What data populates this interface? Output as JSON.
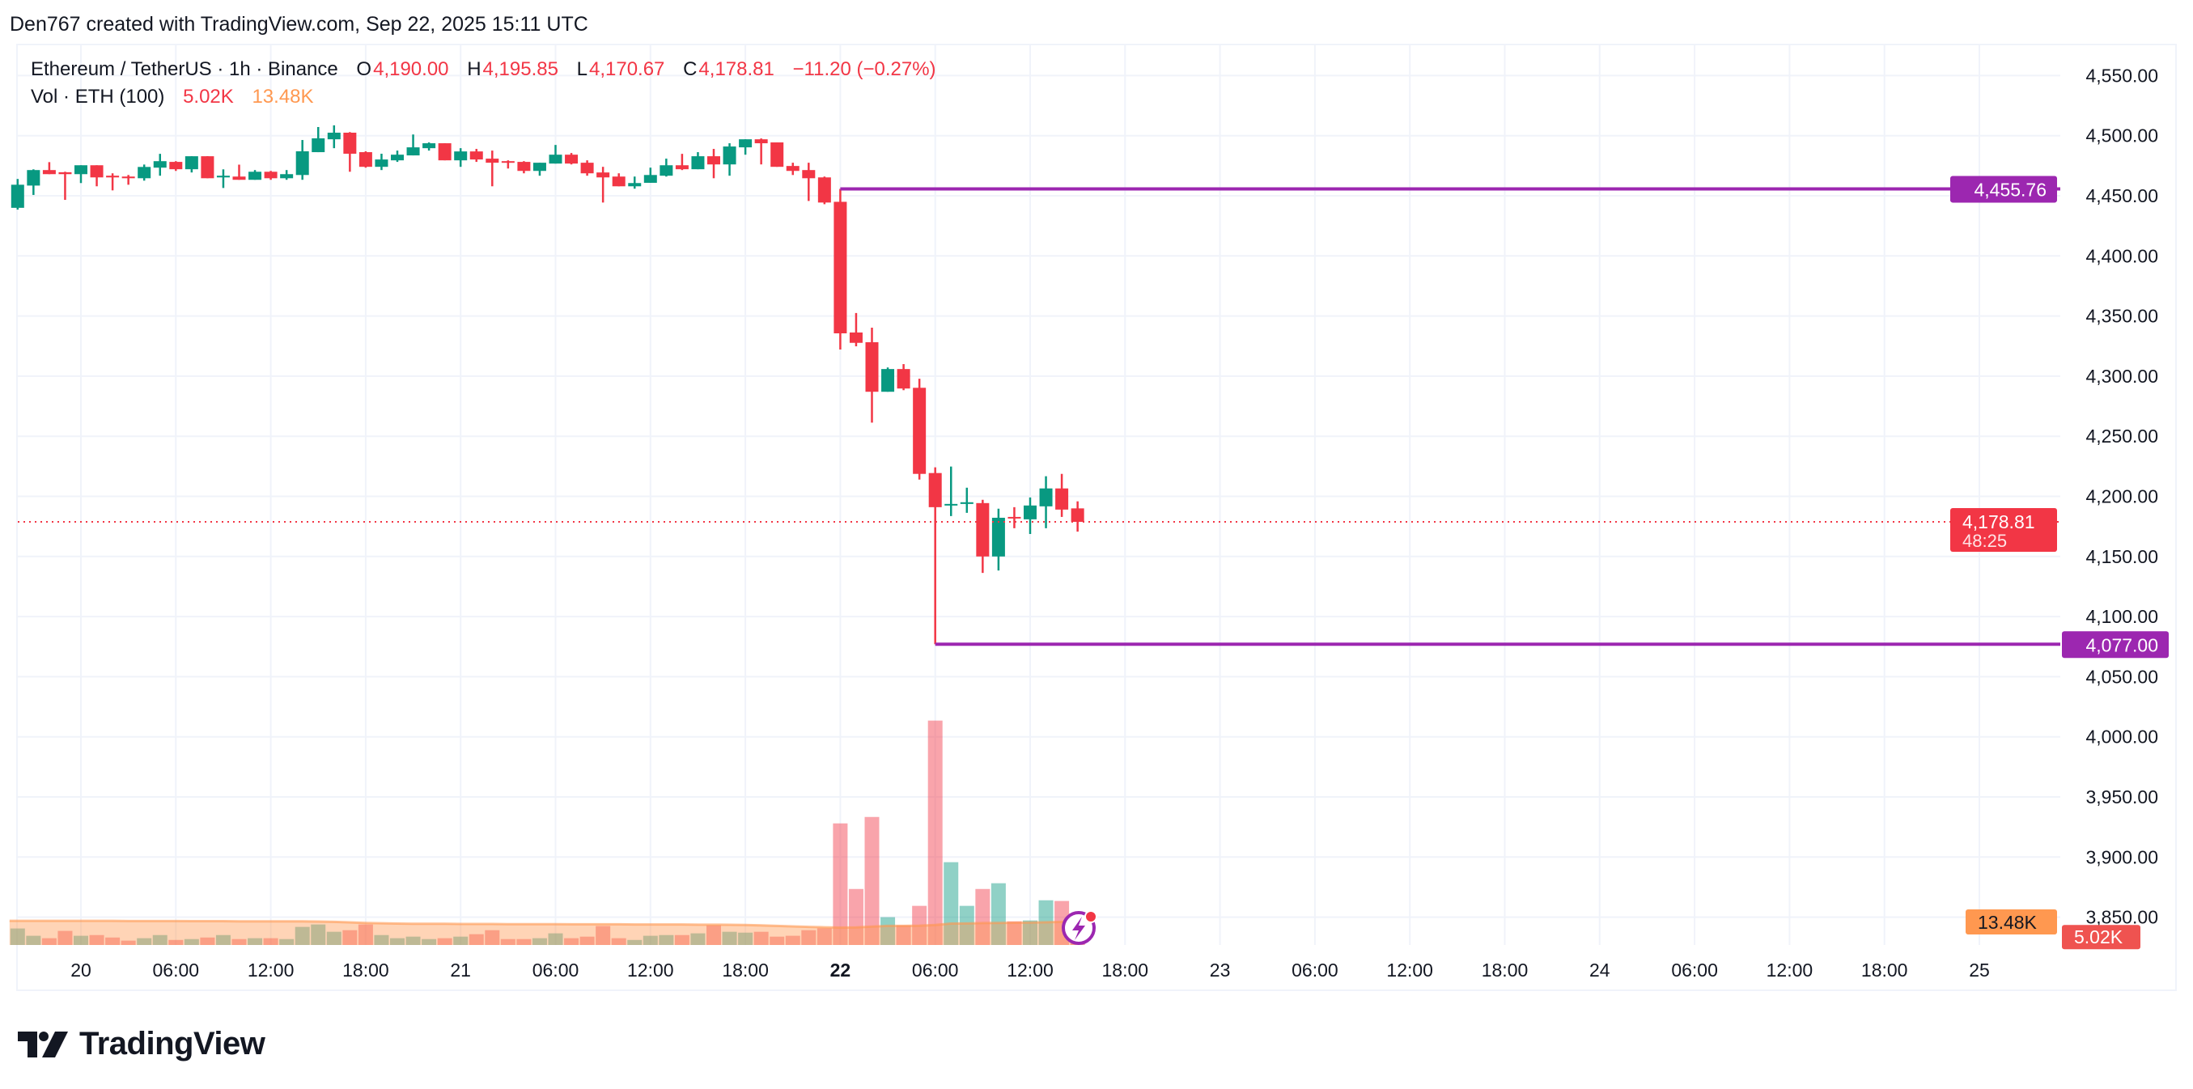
{
  "header": {
    "attribution": "Den767 created with TradingView.com, Sep 22, 2025 15:11 UTC"
  },
  "legend": {
    "symbol": "Ethereum / TetherUS · 1h · Binance",
    "open_label": "O",
    "open": "4,190.00",
    "high_label": "H",
    "high": "4,195.85",
    "low_label": "L",
    "low": "4,170.67",
    "close_label": "C",
    "close": "4,178.81",
    "change": "−11.20 (−0.27%)",
    "vol_label": "Vol · ETH (100)",
    "vol_value": "5.02K",
    "vol_ma": "13.48K"
  },
  "logo": {
    "text": "TradingView"
  },
  "colors": {
    "up": "#089981",
    "down": "#F23645",
    "level_line": "#9C27B0",
    "vol_ma": "#FF9850",
    "grid": "#f0f3fa"
  },
  "chart_data": {
    "type": "candlestick",
    "interval": "1h",
    "y_range": [
      3850,
      4570
    ],
    "y_ticks": [
      "4,550.00",
      "4,500.00",
      "4,450.00",
      "4,400.00",
      "4,350.00",
      "4,300.00",
      "4,250.00",
      "4,200.00",
      "4,150.00",
      "4,100.00",
      "4,050.00",
      "4,000.00",
      "3,950.00",
      "3,900.00",
      "3,850.00"
    ],
    "x_ticks": [
      {
        "label": "20",
        "time": "Sep 20 00:00",
        "bold": false
      },
      {
        "label": "06:00",
        "time": "Sep 20 06:00",
        "bold": false
      },
      {
        "label": "12:00",
        "time": "Sep 20 12:00",
        "bold": false
      },
      {
        "label": "18:00",
        "time": "Sep 20 18:00",
        "bold": false
      },
      {
        "label": "21",
        "time": "Sep 21 00:00",
        "bold": false
      },
      {
        "label": "06:00",
        "time": "Sep 21 06:00",
        "bold": false
      },
      {
        "label": "12:00",
        "time": "Sep 21 12:00",
        "bold": false
      },
      {
        "label": "18:00",
        "time": "Sep 21 18:00",
        "bold": false
      },
      {
        "label": "22",
        "time": "Sep 22 00:00",
        "bold": true
      },
      {
        "label": "06:00",
        "time": "Sep 22 06:00",
        "bold": false
      },
      {
        "label": "12:00",
        "time": "Sep 22 12:00",
        "bold": false
      },
      {
        "label": "18:00",
        "time": "Sep 22 18:00",
        "bold": false
      },
      {
        "label": "23",
        "time": "Sep 23 00:00",
        "bold": false
      },
      {
        "label": "06:00",
        "time": "Sep 23 06:00",
        "bold": false
      },
      {
        "label": "12:00",
        "time": "Sep 23 12:00",
        "bold": false
      },
      {
        "label": "18:00",
        "time": "Sep 23 18:00",
        "bold": false
      },
      {
        "label": "24",
        "time": "Sep 24 00:00",
        "bold": false
      },
      {
        "label": "06:00",
        "time": "Sep 24 06:00",
        "bold": false
      },
      {
        "label": "12:00",
        "time": "Sep 24 12:00",
        "bold": false
      },
      {
        "label": "18:00",
        "time": "Sep 24 18:00",
        "bold": false
      },
      {
        "label": "25",
        "time": "Sep 25 00:00",
        "bold": false
      }
    ],
    "candle_fields": [
      "time",
      "open",
      "high",
      "low",
      "close",
      "volume_k"
    ],
    "candles": [
      [
        "Sep 19 20:00",
        4440,
        4464,
        4438.5,
        4459.2,
        9.5
      ],
      [
        "Sep 19 21:00",
        4458.5,
        4472,
        4450.7,
        4471.4,
        5.3
      ],
      [
        "Sep 19 22:00",
        4471.4,
        4478,
        4468,
        4468,
        3.9
      ],
      [
        "Sep 19 23:00",
        4469.6,
        4470,
        4446.6,
        4468,
        8.1
      ],
      [
        "Sep 20 00:00",
        4468,
        4475.4,
        4460.6,
        4475.4,
        5.3
      ],
      [
        "Sep 20 01:00",
        4475.4,
        4475.4,
        4457.9,
        4465.3,
        5.7
      ],
      [
        "Sep 20 02:00",
        4466.7,
        4468.7,
        4454.5,
        4465.3,
        4.3
      ],
      [
        "Sep 20 03:00",
        4466,
        4467.3,
        4459.2,
        4464.6,
        2.5
      ],
      [
        "Sep 20 04:00",
        4464.6,
        4476,
        4462.6,
        4474,
        3.9
      ],
      [
        "Sep 20 05:00",
        4473.4,
        4484.9,
        4466.7,
        4478.8,
        5.7
      ],
      [
        "Sep 20 06:00",
        4478.2,
        4478.8,
        4470.7,
        4472.1,
        2.9
      ],
      [
        "Sep 20 07:00",
        4472.1,
        4482.9,
        4469.4,
        4482.9,
        3.4
      ],
      [
        "Sep 20 08:00",
        4482.9,
        4483,
        4464.6,
        4464.6,
        4.3
      ],
      [
        "Sep 20 09:00",
        4465.3,
        4472,
        4456.5,
        4466.7,
        5.7
      ],
      [
        "Sep 20 10:00",
        4466,
        4475.9,
        4463.3,
        4463.3,
        3.4
      ],
      [
        "Sep 20 11:00",
        4463.3,
        4471.4,
        4463.3,
        4470,
        3.9
      ],
      [
        "Sep 20 12:00",
        4470,
        4470.7,
        4463.3,
        4464.6,
        3.9
      ],
      [
        "Sep 20 13:00",
        4464.6,
        4471.4,
        4463.3,
        4468,
        3.4
      ],
      [
        "Sep 20 14:00",
        4467.3,
        4496.4,
        4463.3,
        4487,
        10.4
      ],
      [
        "Sep 20 15:00",
        4486.3,
        4507.2,
        4486.3,
        4497.8,
        11.8
      ],
      [
        "Sep 20 16:00",
        4497,
        4508.6,
        4489.6,
        4502.5,
        7.6
      ],
      [
        "Sep 20 17:00",
        4502.5,
        4503,
        4470,
        4485,
        8.5
      ],
      [
        "Sep 20 18:00",
        4486.3,
        4487,
        4473.4,
        4474.1,
        11.8
      ],
      [
        "Sep 20 19:00",
        4474.1,
        4485,
        4471.4,
        4480.2,
        5.7
      ],
      [
        "Sep 20 20:00",
        4479.5,
        4487.6,
        4478.2,
        4484.2,
        3.9
      ],
      [
        "Sep 20 21:00",
        4483.6,
        4501,
        4483.6,
        4490.3,
        4.8
      ],
      [
        "Sep 20 22:00",
        4489.6,
        4494.4,
        4487.6,
        4493.7,
        3.4
      ],
      [
        "Sep 20 23:00",
        4493.7,
        4493.7,
        4479.5,
        4479.5,
        3.9
      ],
      [
        "Sep 21 00:00",
        4479.5,
        4489.6,
        4474.1,
        4486.9,
        4.8
      ],
      [
        "Sep 21 01:00",
        4486.9,
        4489,
        4478.2,
        4480.2,
        6.2
      ],
      [
        "Sep 21 02:00",
        4480.9,
        4487.6,
        4457.9,
        4477.5,
        8.5
      ],
      [
        "Sep 21 03:00",
        4478.8,
        4479.5,
        4472.7,
        4477.5,
        3.4
      ],
      [
        "Sep 21 04:00",
        4478.2,
        4478.8,
        4468.7,
        4470.7,
        3.4
      ],
      [
        "Sep 21 05:00",
        4470.7,
        4477.5,
        4466.7,
        4477.5,
        3.9
      ],
      [
        "Sep 21 06:00",
        4476.8,
        4492.3,
        4476.8,
        4484.2,
        6.7
      ],
      [
        "Sep 21 07:00",
        4484.2,
        4485.6,
        4476.1,
        4476.8,
        3.9
      ],
      [
        "Sep 21 08:00",
        4477.5,
        4479.5,
        4466.7,
        4468.7,
        4.8
      ],
      [
        "Sep 21 09:00",
        4469.4,
        4474.1,
        4444.4,
        4465.3,
        10.9
      ],
      [
        "Sep 21 10:00",
        4466,
        4468.7,
        4457.9,
        4457.9,
        3.9
      ],
      [
        "Sep 21 11:00",
        4457.9,
        4466,
        4455.9,
        4460.6,
        2.9
      ],
      [
        "Sep 21 12:00",
        4460.8,
        4473.4,
        4460.8,
        4467.3,
        5.3
      ],
      [
        "Sep 21 13:00",
        4466.7,
        4480.9,
        4466,
        4475.4,
        5.7
      ],
      [
        "Sep 21 14:00",
        4475.4,
        4484.9,
        4471.4,
        4472.1,
        5.7
      ],
      [
        "Sep 21 15:00",
        4472.1,
        4486.3,
        4472.1,
        4482.9,
        6.7
      ],
      [
        "Sep 21 16:00",
        4482.9,
        4489,
        4464.6,
        4476.1,
        11.3
      ],
      [
        "Sep 21 17:00",
        4476.1,
        4493.7,
        4466.7,
        4491,
        7.6
      ],
      [
        "Sep 21 18:00",
        4490.3,
        4497,
        4484.2,
        4497,
        7.1
      ],
      [
        "Sep 21 19:00",
        4497,
        4497.7,
        4476.1,
        4493.7,
        7.6
      ],
      [
        "Sep 21 20:00",
        4494.4,
        4494.4,
        4474.1,
        4474.1,
        4.8
      ],
      [
        "Sep 21 21:00",
        4474.8,
        4477.5,
        4467.3,
        4470.7,
        5.3
      ],
      [
        "Sep 21 22:00",
        4471.4,
        4477.5,
        4445.7,
        4464.6,
        8.5
      ],
      [
        "Sep 21 23:00",
        4465.3,
        4466,
        4443,
        4444.4,
        9.6
      ],
      [
        "Sep 22 00:00",
        4445,
        4455.76,
        4322.1,
        4335.6,
        69.9
      ],
      [
        "Sep 22 01:00",
        4336.3,
        4352.5,
        4324.8,
        4327.7,
        32.2
      ],
      [
        "Sep 22 02:00",
        4328.2,
        4340.3,
        4261.3,
        4287,
        73.6
      ],
      [
        "Sep 22 03:00",
        4287,
        4307.2,
        4287,
        4305.9,
        16
      ],
      [
        "Sep 22 04:00",
        4305.9,
        4310,
        4288.3,
        4289.7,
        11.3
      ],
      [
        "Sep 22 05:00",
        4290.3,
        4297.8,
        4214,
        4218.7,
        22.5
      ],
      [
        "Sep 22 06:00",
        4219.4,
        4224.1,
        4077,
        4191,
        129
      ],
      [
        "Sep 22 07:00",
        4192.4,
        4224.8,
        4183.6,
        4193.7,
        47.6
      ],
      [
        "Sep 22 08:00",
        4193.7,
        4207.2,
        4186.3,
        4195.1,
        22.5
      ],
      [
        "Sep 22 09:00",
        4194.4,
        4197.1,
        4136.3,
        4150,
        32.2
      ],
      [
        "Sep 22 10:00",
        4150,
        4189.7,
        4138.3,
        4182.2,
        35.5
      ],
      [
        "Sep 22 11:00",
        4182.9,
        4191,
        4173.5,
        4182.2,
        13.6
      ],
      [
        "Sep 22 12:00",
        4180.9,
        4199.1,
        4168.7,
        4192.4,
        14.1
      ],
      [
        "Sep 22 13:00",
        4191.7,
        4216.7,
        4173.5,
        4206.6,
        25.7
      ],
      [
        "Sep 22 14:00",
        4206.6,
        4218.7,
        4182.9,
        4189,
        25.3
      ],
      [
        "Sep 22 15:00",
        4190,
        4195.85,
        4170.67,
        4178.81,
        5.02
      ]
    ],
    "volume_ma_k": [
      13.9,
      13.9,
      13.9,
      13.9,
      13.9,
      13.9,
      13.9,
      13.8,
      13.8,
      13.8,
      13.8,
      13.7,
      13.7,
      13.7,
      13.6,
      13.6,
      13.6,
      13.6,
      13.6,
      13.5,
      13.3,
      13.0,
      12.7,
      12.5,
      12.3,
      12.2,
      12.2,
      12.2,
      12.1,
      12.1,
      12.1,
      12.0,
      12.0,
      12.0,
      12.0,
      11.9,
      11.9,
      11.9,
      11.9,
      11.8,
      11.8,
      11.8,
      11.8,
      11.7,
      11.7,
      11.6,
      11.5,
      11.3,
      11.0,
      10.7,
      10.4,
      10.2,
      10.0,
      10.1,
      10.6,
      11.0,
      11.0,
      11.1,
      11.5,
      12.3,
      12.4,
      12.6,
      12.7,
      12.8,
      12.9,
      13.1,
      13.3,
      13.48
    ],
    "levels": [
      {
        "label": "4,455.76",
        "price": 4455.76,
        "from": "Sep 22 00:00"
      },
      {
        "label": "4,077.00",
        "price": 4077.0,
        "from": "Sep 22 06:00"
      }
    ],
    "last_price": {
      "label": "4,178.81",
      "price": 4178.81,
      "countdown": "48:25"
    },
    "volume_labels": {
      "ma": "13.48K",
      "ma_value": 13.48,
      "last": "5.02K",
      "last_value": 5.02
    }
  }
}
